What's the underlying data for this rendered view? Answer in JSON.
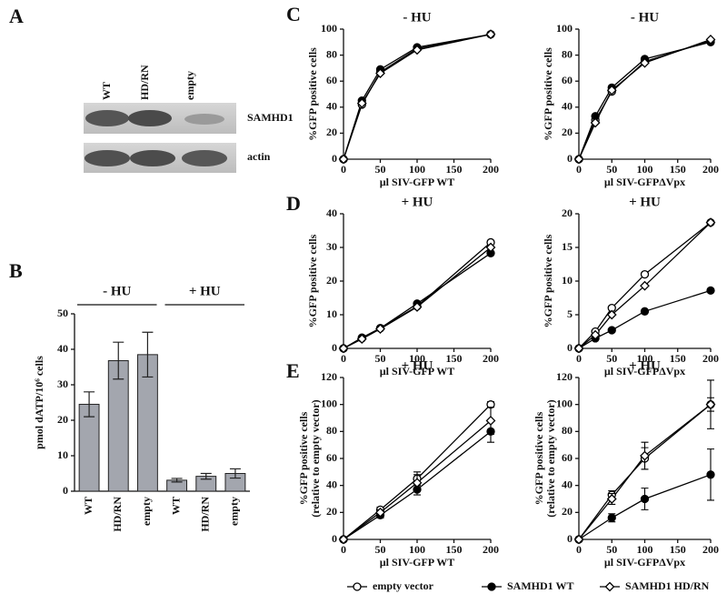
{
  "panel_labels": [
    "A",
    "B",
    "C",
    "D",
    "E"
  ],
  "blot": {
    "lanes": [
      "WT",
      "HD/RN",
      "empty"
    ],
    "bands": [
      "SAMHD1",
      "actin"
    ]
  },
  "legend_position": "bottom",
  "chart_data": [
    {
      "type": "bar",
      "ylabel": "pmol dATP/10⁶ cells",
      "categories": [
        "WT",
        "HD/RN",
        "empty",
        "WT",
        "HD/RN",
        "empty"
      ],
      "values": [
        24.5,
        36.8,
        38.5,
        3.1,
        4.2,
        5.0
      ],
      "errors": [
        3.5,
        5.2,
        6.3,
        0.5,
        0.8,
        1.3
      ],
      "group_labels": [
        "- HU",
        "+ HU"
      ],
      "color": "#a3a6ae",
      "ylim": [
        0,
        50
      ],
      "yticks": [
        0,
        10,
        20,
        30,
        40,
        50
      ]
    },
    {
      "type": "line",
      "title": "- HU",
      "xlabel": "µl SIV-GFP WT",
      "ylabel": "%GFP positive cells",
      "x": [
        0,
        25,
        50,
        100,
        200
      ],
      "xlim": [
        0,
        200
      ],
      "xticks": [
        0,
        50,
        100,
        150,
        200
      ],
      "ylim": [
        0,
        100
      ],
      "yticks": [
        0,
        20,
        40,
        60,
        80,
        100
      ],
      "series": [
        {
          "name": "empty vector",
          "marker": "circle-open",
          "color": "#000000",
          "values": [
            0,
            42,
            67,
            85,
            96
          ]
        },
        {
          "name": "SAMHD1 WT",
          "marker": "circle-filled",
          "color": "#000000",
          "values": [
            0,
            45,
            69,
            86,
            96
          ]
        },
        {
          "name": "SAMHD1 HD/RN",
          "marker": "diamond-open",
          "color": "#000000",
          "values": [
            0,
            43,
            66,
            84,
            96
          ]
        }
      ]
    },
    {
      "type": "line",
      "title": "- HU",
      "xlabel": "µl SIV-GFPΔVpx",
      "ylabel": "%GFP positive cells",
      "x": [
        0,
        25,
        50,
        100,
        200
      ],
      "xlim": [
        0,
        200
      ],
      "xticks": [
        0,
        50,
        100,
        150,
        200
      ],
      "ylim": [
        0,
        100
      ],
      "yticks": [
        0,
        20,
        40,
        60,
        80,
        100
      ],
      "series": [
        {
          "name": "empty vector",
          "marker": "circle-open",
          "color": "#000000",
          "values": [
            0,
            30,
            52,
            75,
            91
          ]
        },
        {
          "name": "SAMHD1 WT",
          "marker": "circle-filled",
          "color": "#000000",
          "values": [
            0,
            33,
            55,
            77,
            90
          ]
        },
        {
          "name": "SAMHD1 HD/RN",
          "marker": "diamond-open",
          "color": "#000000",
          "values": [
            0,
            28,
            53,
            74,
            92
          ]
        }
      ]
    },
    {
      "type": "line",
      "title": "+ HU",
      "xlabel": "µl SIV-GFP WT",
      "ylabel": "%GFP positive cells",
      "x": [
        0,
        25,
        50,
        100,
        200
      ],
      "xlim": [
        0,
        200
      ],
      "xticks": [
        0,
        50,
        100,
        150,
        200
      ],
      "ylim": [
        0,
        40
      ],
      "yticks": [
        0,
        10,
        20,
        30,
        40
      ],
      "series": [
        {
          "name": "empty vector",
          "marker": "circle-open",
          "color": "#000000",
          "values": [
            0,
            3,
            6,
            12.5,
            31.5
          ]
        },
        {
          "name": "SAMHD1 WT",
          "marker": "circle-filled",
          "color": "#000000",
          "values": [
            0,
            3.2,
            6,
            13.3,
            28.3
          ]
        },
        {
          "name": "SAMHD1 HD/RN",
          "marker": "diamond-open",
          "color": "#000000",
          "values": [
            0,
            2.8,
            5.8,
            12.3,
            30
          ]
        }
      ]
    },
    {
      "type": "line",
      "title": "+ HU",
      "xlabel": "µl SIV-GFPΔVpx",
      "ylabel": "%GFP positive cells",
      "x": [
        0,
        25,
        50,
        100,
        200
      ],
      "xlim": [
        0,
        200
      ],
      "xticks": [
        0,
        50,
        100,
        150,
        200
      ],
      "ylim": [
        0,
        20
      ],
      "yticks": [
        0,
        5,
        10,
        15,
        20
      ],
      "series": [
        {
          "name": "empty vector",
          "marker": "circle-open",
          "color": "#000000",
          "values": [
            0,
            2.5,
            6,
            11,
            18.7
          ]
        },
        {
          "name": "SAMHD1 WT",
          "marker": "circle-filled",
          "color": "#000000",
          "values": [
            0,
            1.5,
            2.7,
            5.5,
            8.6
          ]
        },
        {
          "name": "SAMHD1 HD/RN",
          "marker": "diamond-open",
          "color": "#000000",
          "values": [
            0,
            2,
            5,
            9.3,
            18.7
          ]
        }
      ]
    },
    {
      "type": "line",
      "title": "+ HU",
      "xlabel": "µl SIV-GFP WT",
      "ylabel": "%GFP positive cells",
      "ylabel_note": "(relative to empty vector)",
      "x": [
        0,
        50,
        100,
        200
      ],
      "xlim": [
        0,
        200
      ],
      "xticks": [
        0,
        50,
        100,
        150,
        200
      ],
      "ylim": [
        0,
        120
      ],
      "yticks": [
        0,
        20,
        40,
        60,
        80,
        100,
        120
      ],
      "series": [
        {
          "name": "empty vector",
          "marker": "circle-open",
          "color": "#000000",
          "values": [
            0,
            22,
            45,
            100
          ],
          "errors": [
            0,
            2,
            5,
            2
          ]
        },
        {
          "name": "SAMHD1 WT",
          "marker": "circle-filled",
          "color": "#000000",
          "values": [
            0,
            18,
            37,
            80
          ],
          "errors": [
            0,
            2,
            4,
            8
          ]
        },
        {
          "name": "SAMHD1 HD/RN",
          "marker": "diamond-open",
          "color": "#000000",
          "values": [
            0,
            20,
            42,
            88
          ],
          "errors": [
            0,
            2,
            6,
            10
          ]
        }
      ]
    },
    {
      "type": "line",
      "title": "+ HU",
      "xlabel": "µl SIV-GFPΔVpx",
      "ylabel": "%GFP positive cells",
      "ylabel_note": "(relative to empty vector)",
      "x": [
        0,
        50,
        100,
        200
      ],
      "xlim": [
        0,
        200
      ],
      "xticks": [
        0,
        50,
        100,
        150,
        200
      ],
      "ylim": [
        0,
        120
      ],
      "yticks": [
        0,
        20,
        40,
        60,
        80,
        100,
        120
      ],
      "series": [
        {
          "name": "empty vector",
          "marker": "circle-open",
          "color": "#000000",
          "values": [
            0,
            33,
            60,
            100
          ],
          "errors": [
            0,
            3,
            8,
            18
          ]
        },
        {
          "name": "SAMHD1 WT",
          "marker": "circle-filled",
          "color": "#000000",
          "values": [
            0,
            16,
            30,
            48
          ],
          "errors": [
            0,
            3,
            8,
            19
          ]
        },
        {
          "name": "SAMHD1 HD/RN",
          "marker": "diamond-open",
          "color": "#000000",
          "values": [
            0,
            30,
            62,
            100
          ],
          "errors": [
            0,
            4,
            10,
            5
          ]
        }
      ]
    }
  ]
}
